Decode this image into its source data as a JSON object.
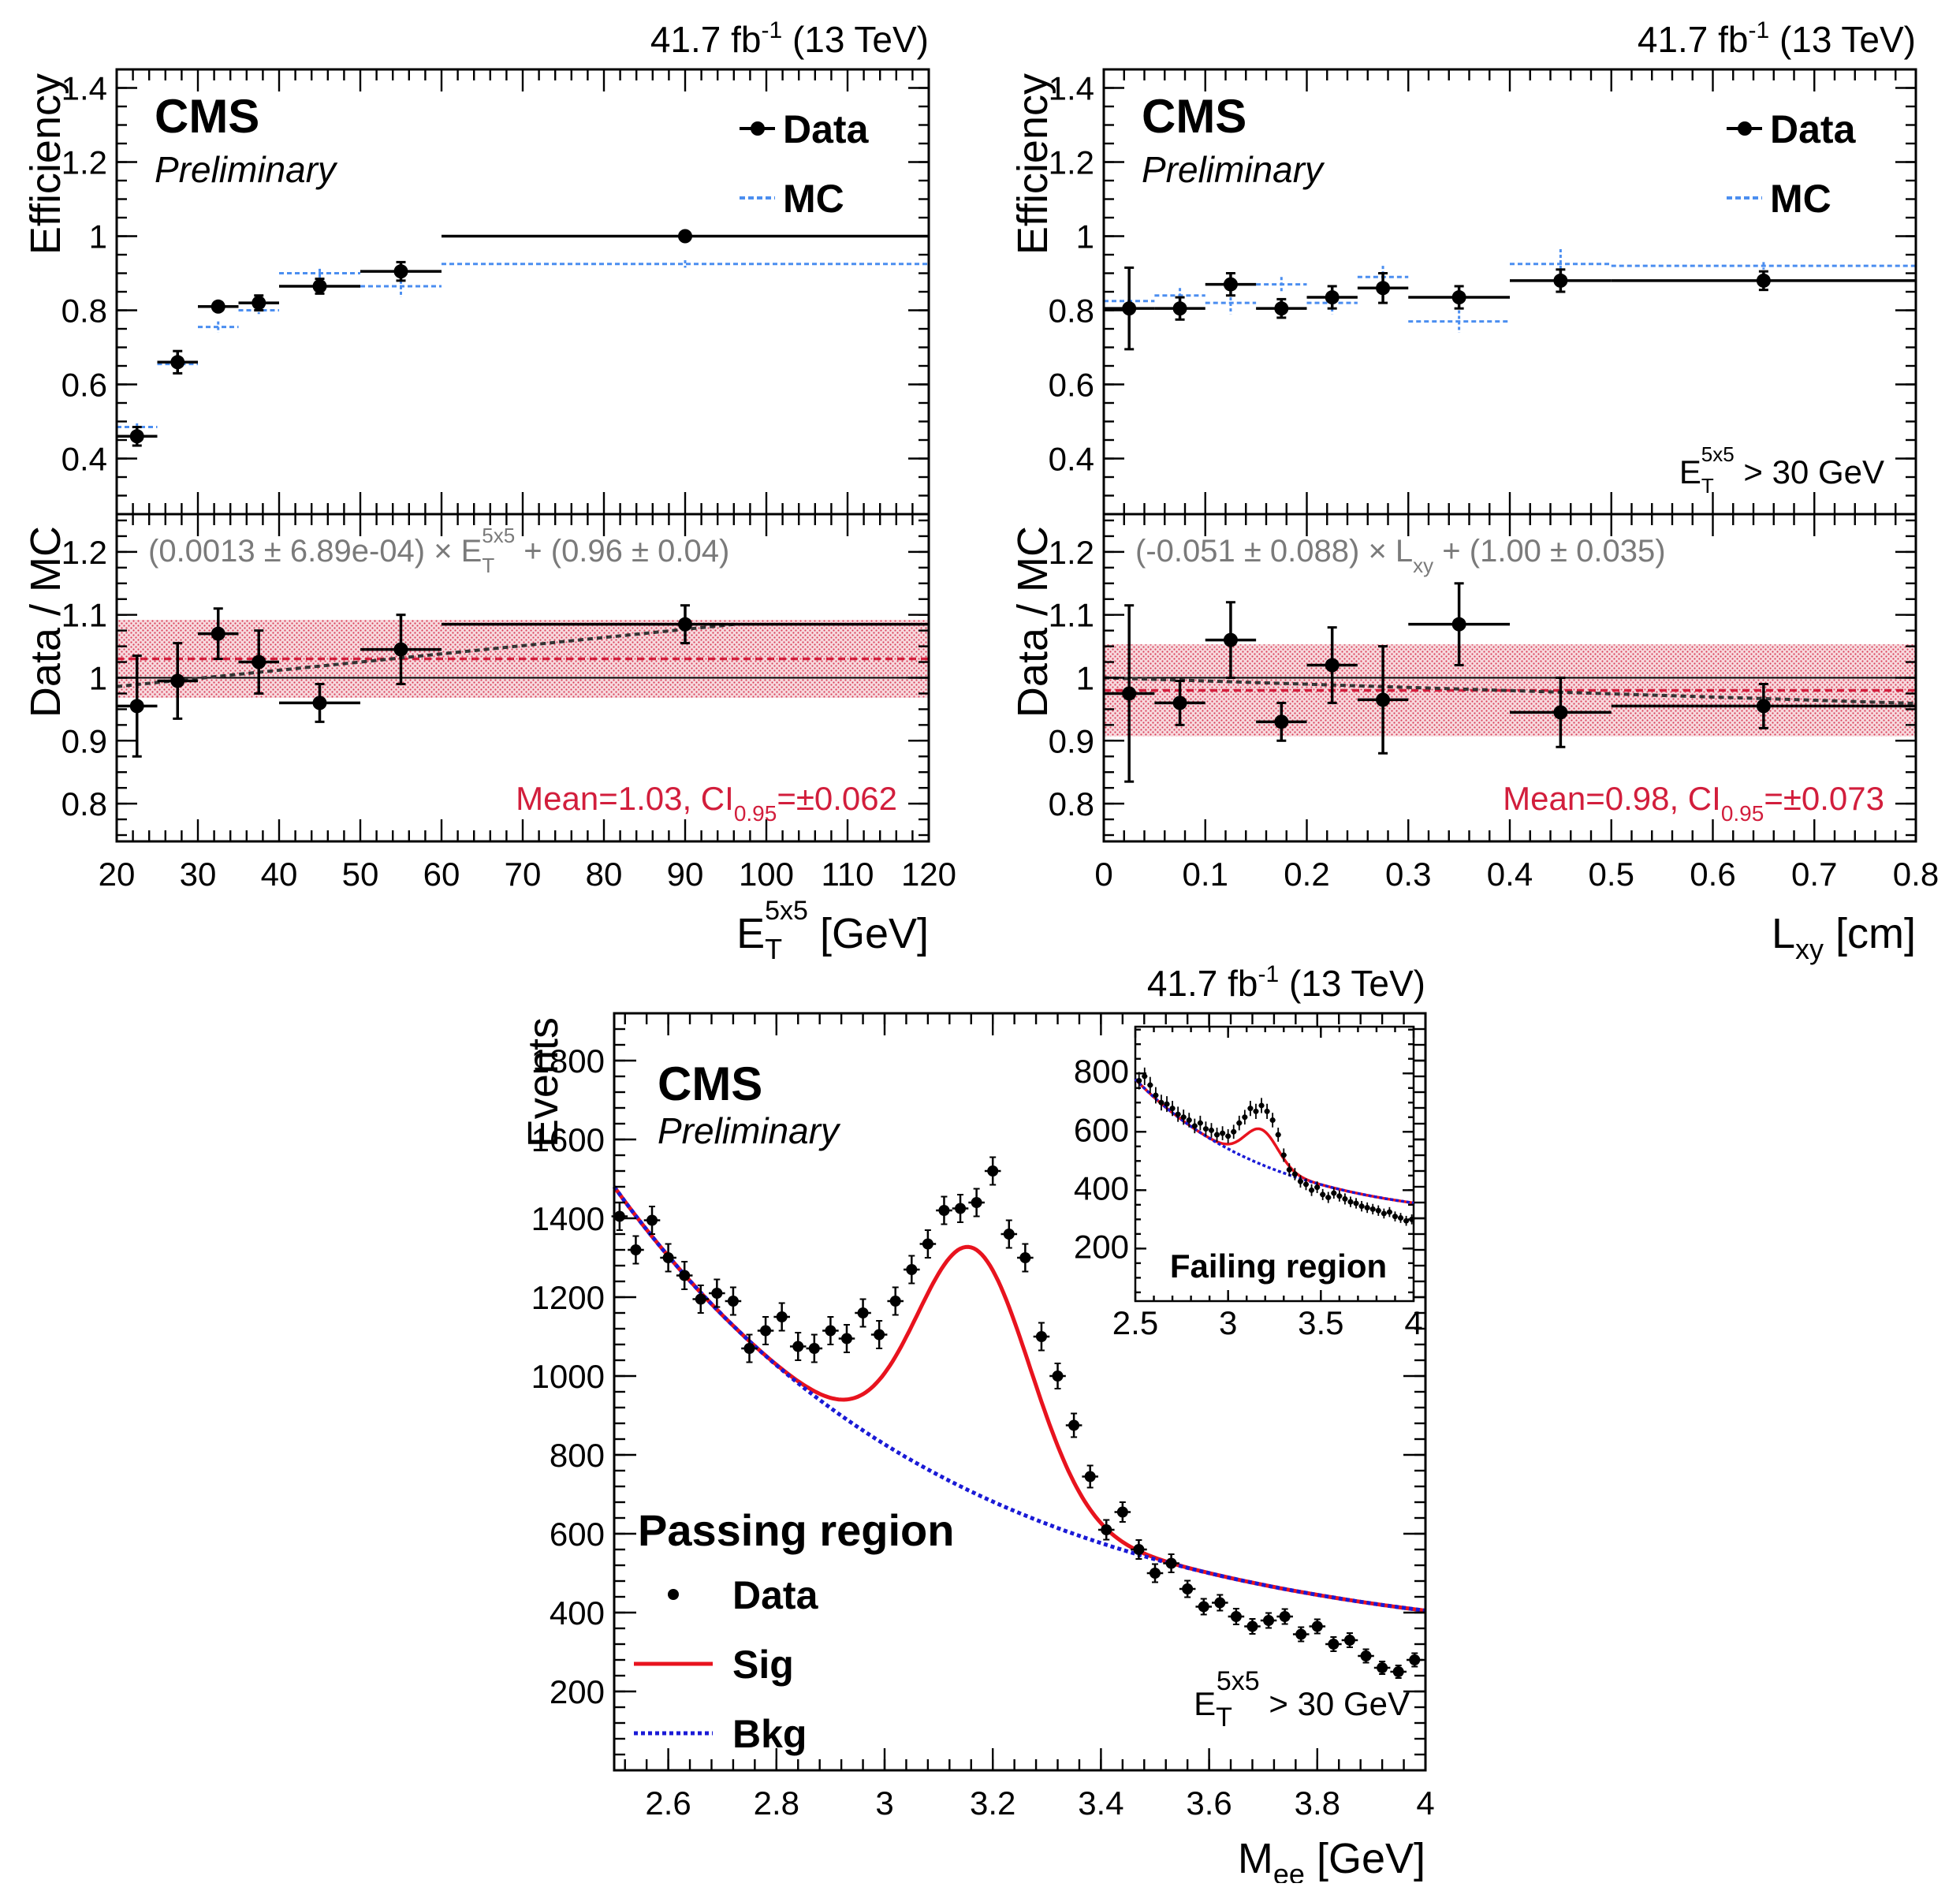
{
  "lumi_label": "41.7 fb",
  "lumi_exp": "-1",
  "lumi_energy": " (13 TeV)",
  "cms": "CMS",
  "preliminary": "Preliminary",
  "legend": {
    "data": "Data",
    "mc": "MC",
    "sig": "Sig",
    "bkg": "Bkg"
  },
  "colors": {
    "data": "#000000",
    "mc": "#4b8ef0",
    "band": "#d21e3c",
    "fit": "#333333",
    "sig": "#e8131e",
    "bkg": "#1a1ad6",
    "fitlabel": "#7a7a7a"
  },
  "chart_data": [
    {
      "type": "scatter",
      "id": "et",
      "ylabel_top": "Efficiency",
      "ylabel_bottom": "Data / MC",
      "xlabel_main": "E",
      "xlabel_sub": "T",
      "xlabel_sup": "5x5",
      "xlabel_unit": " [GeV]",
      "xlim": [
        20,
        120
      ],
      "ylim_top": [
        0.25,
        1.45
      ],
      "ylim_bottom": [
        0.74,
        1.26
      ],
      "xticks": [
        "20",
        "30",
        "40",
        "50",
        "60",
        "70",
        "80",
        "90",
        "100",
        "110",
        "120"
      ],
      "yticks_top": [
        "0.4",
        "0.6",
        "0.8",
        "1",
        "1.2",
        "1.4"
      ],
      "yticks_bottom": [
        "0.8",
        "0.9",
        "1",
        "1.1",
        "1.2"
      ],
      "data": {
        "x": [
          22.5,
          27.5,
          32.5,
          37.5,
          45,
          55,
          90
        ],
        "xlo": [
          20,
          25,
          30,
          35,
          40,
          50,
          60
        ],
        "xhi": [
          25,
          30,
          35,
          40,
          50,
          60,
          120
        ],
        "y": [
          0.46,
          0.66,
          0.81,
          0.82,
          0.865,
          0.905,
          1.0
        ],
        "yerr": [
          0.025,
          0.03,
          0.01,
          0.02,
          0.02,
          0.025,
          0.0
        ]
      },
      "mc": {
        "x": [
          22.5,
          27.5,
          32.5,
          37.5,
          45,
          55,
          90
        ],
        "xlo": [
          20,
          25,
          30,
          35,
          40,
          50,
          60
        ],
        "xhi": [
          25,
          30,
          35,
          40,
          50,
          60,
          120
        ],
        "y": [
          0.485,
          0.655,
          0.755,
          0.8,
          0.9,
          0.865,
          0.925
        ],
        "yerr": [
          0.01,
          0.01,
          0.015,
          0.01,
          0.012,
          0.03,
          0.01
        ]
      },
      "ratio": {
        "x": [
          22.5,
          27.5,
          32.5,
          37.5,
          45,
          55,
          90
        ],
        "xlo": [
          20,
          25,
          30,
          35,
          40,
          50,
          60
        ],
        "xhi": [
          25,
          30,
          35,
          40,
          50,
          60,
          120
        ],
        "y": [
          0.955,
          0.995,
          1.07,
          1.025,
          0.96,
          1.045,
          1.085
        ],
        "yerr": [
          0.08,
          0.06,
          0.04,
          0.05,
          0.03,
          0.055,
          0.03
        ]
      },
      "mean": 1.03,
      "ci": 0.062,
      "fit_slope": 0.0013,
      "fit_intercept": 0.96,
      "fit_text_a": "(0.0013 ± 6.89e-04) × E",
      "fit_text_sup": "5x5",
      "fit_text_sub": "T",
      "fit_text_b": " + (0.96 ± 0.04)",
      "mean_text_a": "Mean=1.03, CI",
      "mean_text_sub": "0.95",
      "mean_text_b": "=±0.062",
      "cut_label": ""
    },
    {
      "type": "scatter",
      "id": "lxy",
      "ylabel_top": "Efficiency",
      "ylabel_bottom": "Data / MC",
      "xlabel_main": "L",
      "xlabel_sub": "xy",
      "xlabel_sup": "",
      "xlabel_unit": " [cm]",
      "xlim": [
        0,
        0.8
      ],
      "ylim_top": [
        0.25,
        1.45
      ],
      "ylim_bottom": [
        0.74,
        1.26
      ],
      "xticks": [
        "0",
        "0.1",
        "0.2",
        "0.3",
        "0.4",
        "0.5",
        "0.6",
        "0.7",
        "0.8"
      ],
      "yticks_top": [
        "0.4",
        "0.6",
        "0.8",
        "1",
        "1.2",
        "1.4"
      ],
      "yticks_bottom": [
        "0.8",
        "0.9",
        "1",
        "1.1",
        "1.2"
      ],
      "data": {
        "x": [
          0.025,
          0.075,
          0.125,
          0.175,
          0.225,
          0.275,
          0.35,
          0.45,
          0.65
        ],
        "xlo": [
          0,
          0.05,
          0.1,
          0.15,
          0.2,
          0.25,
          0.3,
          0.4,
          0.5
        ],
        "xhi": [
          0.05,
          0.1,
          0.15,
          0.2,
          0.25,
          0.3,
          0.4,
          0.5,
          0.8
        ],
        "y": [
          0.805,
          0.805,
          0.87,
          0.805,
          0.835,
          0.86,
          0.835,
          0.88,
          0.88
        ],
        "yerr": [
          0.11,
          0.03,
          0.03,
          0.025,
          0.03,
          0.04,
          0.03,
          0.03,
          0.025
        ]
      },
      "mc": {
        "x": [
          0.025,
          0.075,
          0.125,
          0.175,
          0.225,
          0.275,
          0.35,
          0.45,
          0.65
        ],
        "xlo": [
          0,
          0.05,
          0.1,
          0.15,
          0.2,
          0.25,
          0.3,
          0.4,
          0.5
        ],
        "xhi": [
          0.05,
          0.1,
          0.15,
          0.2,
          0.25,
          0.3,
          0.4,
          0.5,
          0.8
        ],
        "y": [
          0.825,
          0.84,
          0.82,
          0.87,
          0.82,
          0.89,
          0.77,
          0.925,
          0.92
        ],
        "yerr": [
          0.015,
          0.02,
          0.03,
          0.02,
          0.03,
          0.03,
          0.03,
          0.04,
          0.01
        ]
      },
      "ratio": {
        "x": [
          0.025,
          0.075,
          0.125,
          0.175,
          0.225,
          0.275,
          0.35,
          0.45,
          0.65
        ],
        "xlo": [
          0,
          0.05,
          0.1,
          0.15,
          0.2,
          0.25,
          0.3,
          0.4,
          0.5
        ],
        "xhi": [
          0.05,
          0.1,
          0.15,
          0.2,
          0.25,
          0.3,
          0.4,
          0.5,
          0.8
        ],
        "y": [
          0.975,
          0.96,
          1.06,
          0.93,
          1.02,
          0.965,
          1.085,
          0.945,
          0.955
        ],
        "yerr": [
          0.14,
          0.035,
          0.06,
          0.03,
          0.06,
          0.085,
          0.065,
          0.055,
          0.035
        ]
      },
      "mean": 0.98,
      "ci": 0.073,
      "fit_slope": -0.051,
      "fit_intercept": 1.0,
      "fit_text_a": "(-0.051 ± 0.088) × L",
      "fit_text_sup": "",
      "fit_text_sub": "xy",
      "fit_text_b": " + (1.00 ± 0.035)",
      "mean_text_a": "Mean=0.98, CI",
      "mean_text_sub": "0.95",
      "mean_text_b": "=±0.073",
      "cut_label": "E",
      "cut_sub": "T",
      "cut_sup": "5x5",
      "cut_rest": " > 30 GeV"
    },
    {
      "type": "scatter",
      "id": "mee",
      "ylabel": "Events",
      "xlabel_main": "M",
      "xlabel_sub": "ee",
      "xlabel_unit": " [GeV]",
      "xlim": [
        2.5,
        4.0
      ],
      "ylim": [
        0,
        1920
      ],
      "xticks": [
        "2.6",
        "2.8",
        "3",
        "3.2",
        "3.4",
        "3.6",
        "3.8",
        "4"
      ],
      "yticks": [
        "200",
        "400",
        "600",
        "800",
        "1000",
        "1200",
        "1400",
        "1600",
        "1800"
      ],
      "region_label": "Passing region",
      "cut_label": "E",
      "cut_sub": "T",
      "cut_sup": "5x5",
      "cut_rest": " > 30 GeV",
      "bkg_model": {
        "a": 1480,
        "b": 300,
        "c": 0.62
      },
      "sig_model": {
        "amp": 620,
        "mu": 3.165,
        "sigma": 0.105
      },
      "data": {
        "x": [
          2.51,
          2.54,
          2.57,
          2.6,
          2.63,
          2.66,
          2.69,
          2.72,
          2.75,
          2.78,
          2.81,
          2.84,
          2.87,
          2.9,
          2.93,
          2.96,
          2.99,
          3.02,
          3.05,
          3.08,
          3.11,
          3.14,
          3.17,
          3.2,
          3.23,
          3.26,
          3.29,
          3.32,
          3.35,
          3.38,
          3.41,
          3.44,
          3.47,
          3.5,
          3.53,
          3.56,
          3.59,
          3.62,
          3.65,
          3.68,
          3.71,
          3.74,
          3.77,
          3.8,
          3.83,
          3.86,
          3.89,
          3.92,
          3.95,
          3.98
        ],
        "y": [
          1405,
          1320,
          1395,
          1300,
          1255,
          1195,
          1210,
          1190,
          1070,
          1115,
          1150,
          1075,
          1070,
          1115,
          1095,
          1160,
          1105,
          1190,
          1270,
          1335,
          1420,
          1425,
          1440,
          1520,
          1360,
          1300,
          1100,
          1000,
          875,
          745,
          610,
          655,
          560,
          500,
          525,
          460,
          415,
          425,
          390,
          365,
          380,
          390,
          345,
          365,
          320,
          330,
          290,
          260,
          250,
          280
        ],
        "yerr": [
          35,
          35,
          35,
          35,
          35,
          35,
          35,
          35,
          35,
          35,
          35,
          35,
          35,
          35,
          35,
          35,
          35,
          35,
          35,
          35,
          35,
          35,
          35,
          35,
          35,
          35,
          35,
          32,
          30,
          28,
          25,
          25,
          24,
          23,
          23,
          21,
          20,
          20,
          20,
          19,
          19,
          19,
          18,
          18,
          18,
          18,
          17,
          16,
          16,
          17
        ]
      },
      "inset": {
        "label": "Failing region",
        "xlim": [
          2.5,
          4.0
        ],
        "ylim": [
          20,
          960
        ],
        "xticks": [
          "2.5",
          "3",
          "3.5",
          "4"
        ],
        "yticks": [
          "200",
          "400",
          "600",
          "800"
        ],
        "bkg_model": {
          "a": 780,
          "b": 290,
          "c": 0.75
        },
        "sig_model": {
          "amp": 120,
          "mu": 3.18,
          "sigma": 0.09
        },
        "x": [
          2.52,
          2.55,
          2.58,
          2.61,
          2.64,
          2.67,
          2.7,
          2.73,
          2.76,
          2.79,
          2.82,
          2.85,
          2.88,
          2.91,
          2.94,
          2.97,
          3.0,
          3.03,
          3.06,
          3.09,
          3.12,
          3.15,
          3.18,
          3.21,
          3.24,
          3.27,
          3.3,
          3.33,
          3.36,
          3.39,
          3.42,
          3.45,
          3.48,
          3.51,
          3.54,
          3.57,
          3.6,
          3.63,
          3.66,
          3.69,
          3.72,
          3.75,
          3.78,
          3.81,
          3.84,
          3.87,
          3.9,
          3.93,
          3.96,
          3.99
        ],
        "y": [
          775,
          790,
          760,
          725,
          700,
          695,
          680,
          660,
          650,
          640,
          620,
          630,
          610,
          605,
          590,
          595,
          585,
          600,
          630,
          650,
          680,
          670,
          690,
          670,
          640,
          590,
          520,
          470,
          455,
          430,
          420,
          400,
          410,
          385,
          375,
          390,
          380,
          370,
          360,
          355,
          345,
          340,
          335,
          330,
          320,
          325,
          310,
          305,
          295,
          300
        ],
        "yerr": [
          30,
          30,
          28,
          28,
          27,
          27,
          26,
          26,
          26,
          25,
          25,
          25,
          25,
          25,
          24,
          24,
          24,
          24,
          25,
          25,
          26,
          26,
          26,
          26,
          25,
          24,
          23,
          22,
          21,
          21,
          20,
          20,
          20,
          19,
          19,
          19,
          19,
          19,
          18,
          18,
          18,
          18,
          18,
          18,
          17,
          17,
          17,
          17,
          17,
          17
        ]
      }
    }
  ]
}
